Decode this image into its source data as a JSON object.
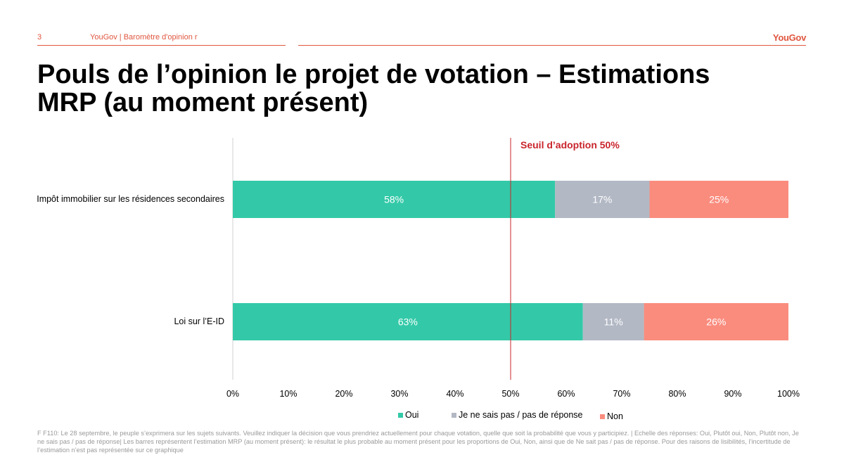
{
  "header": {
    "page_number": "3",
    "source_text": "YouGov | Baromètre d'opinion r",
    "logo": "YouGov"
  },
  "title": "Pouls de l’opinion le projet de votation – Estimations MRP (au moment présent)",
  "threshold_label": "Seuil d’adoption 50%",
  "footnote": "F F110: Le 28 septembre, le peuple s’exprimera sur les sujets suivants. Veuillez indiquer la décision que vous prendriez actuellement pour chaque votation, quelle que soit la probabilité que vous y participiez. | Echelle des réponses: Oui, Plutôt oui, Non, Plutôt non, Je ne sais pas / pas de réponse| Les barres représentent l’estimation MRP (au moment présent): le résultat le plus probable au moment présent pour les proportions de Oui, Non, ainsi que de Ne sait pas / pas de réponse. Pour des raisons de lisibilités, l’incertitude de l’estimation n’est pas représentée sur ce graphique",
  "colors": {
    "oui": "#33c9a8",
    "nsp": "#b2b8c4",
    "non": "#fa8c7e",
    "threshold": "#c9252c",
    "axis": "#d0d0d0"
  },
  "chart_data": {
    "type": "bar",
    "orientation": "horizontal",
    "stacked": true,
    "categories": [
      "Impôt immobilier sur les résidences secondaires",
      "Loi sur l’E-ID"
    ],
    "series": [
      {
        "name": "Oui",
        "values": [
          58,
          63
        ],
        "labels": [
          "58%",
          "63%"
        ]
      },
      {
        "name": "Je ne sais pas / pas de réponse",
        "values": [
          17,
          11
        ],
        "labels": [
          "17%",
          "11%"
        ]
      },
      {
        "name": "Non",
        "values": [
          25,
          26
        ],
        "labels": [
          "25%",
          "26%"
        ]
      }
    ],
    "xlim": [
      0,
      100
    ],
    "xticks": [
      "0%",
      "10%",
      "20%",
      "30%",
      "40%",
      "50%",
      "60%",
      "70%",
      "80%",
      "90%",
      "100%"
    ],
    "threshold": 50,
    "legend_position": "bottom"
  }
}
